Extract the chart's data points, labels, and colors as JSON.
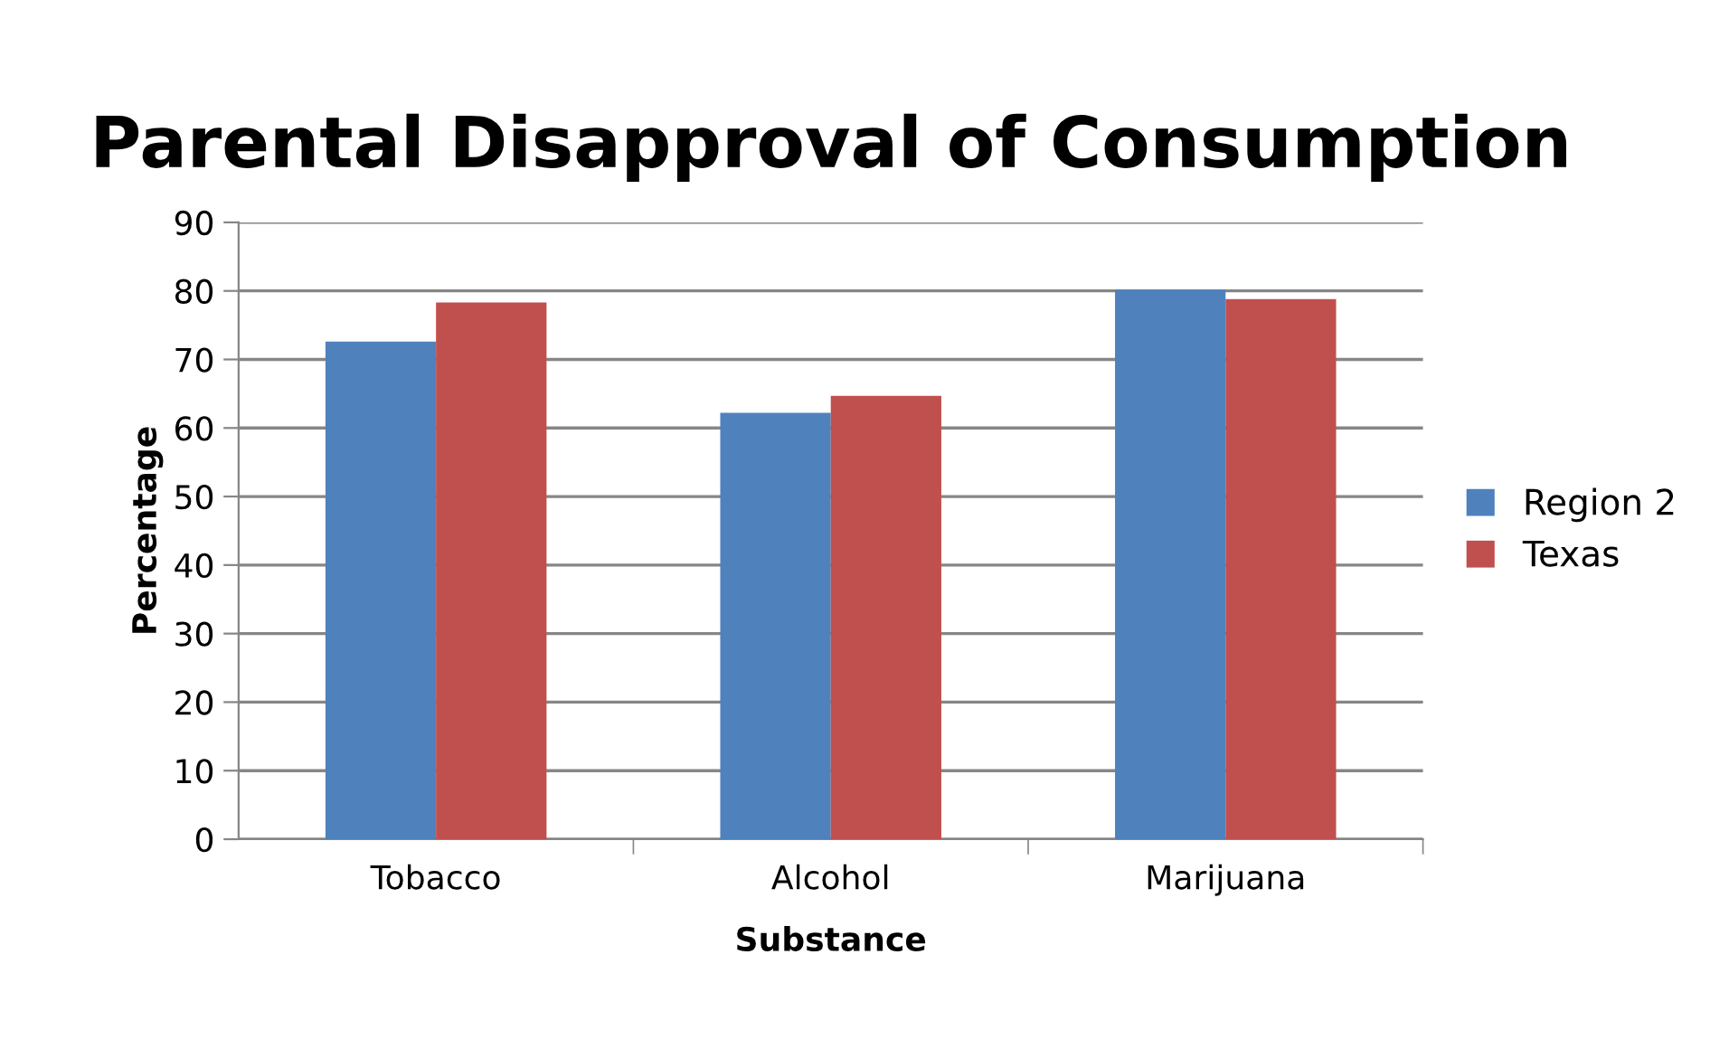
{
  "chart_data": {
    "type": "bar",
    "title": "Parental Disapproval of Consumption",
    "xlabel": "Substance",
    "ylabel": "Percentage",
    "categories": [
      "Tobacco",
      "Alcohol",
      "Marijuana"
    ],
    "series": [
      {
        "name": "Region 2",
        "color": "#4f81bd",
        "values": [
          72.6,
          62.2,
          80.2
        ]
      },
      {
        "name": "Texas",
        "color": "#c0504d",
        "values": [
          78.3,
          64.7,
          78.8
        ]
      }
    ],
    "ylim": [
      0,
      90
    ],
    "yticks": [
      0,
      10,
      20,
      30,
      40,
      50,
      60,
      70,
      80,
      90
    ],
    "grid": "y",
    "legend": "right"
  }
}
